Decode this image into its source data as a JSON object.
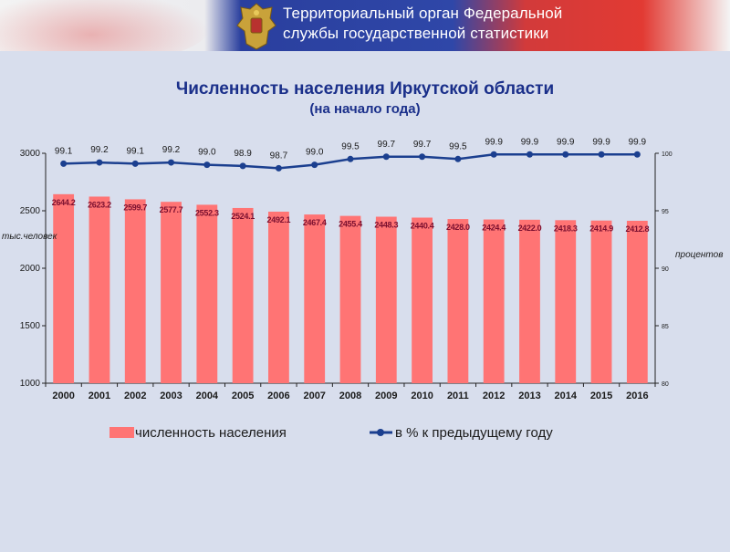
{
  "header": {
    "org_line1": "Территориальный орган Федеральной",
    "org_line2": "службы государственной статистики"
  },
  "colors": {
    "bar": "#ff7474",
    "line": "#1b3f8f",
    "title": "#1a2f8a",
    "bar_label": "#7a0f2f",
    "background": "#d8deed"
  },
  "chart_data": {
    "type": "bar",
    "title": "Численность населения Иркутской области",
    "subtitle": "(на начало года)",
    "ylabel": "тыс.человек",
    "y2label": "процентов",
    "categories": [
      "2000",
      "2001",
      "2002",
      "2003",
      "2004",
      "2005",
      "2006",
      "2007",
      "2008",
      "2009",
      "2010",
      "2011",
      "2012",
      "2013",
      "2014",
      "2015",
      "2016"
    ],
    "ylim": [
      1000,
      3000
    ],
    "yticks": [
      1000,
      1500,
      2000,
      2500,
      3000
    ],
    "y2lim": [
      80,
      100
    ],
    "y2ticks": [
      80,
      85,
      90,
      95,
      100
    ],
    "grid": false,
    "legend": "bottom",
    "series": [
      {
        "name": "численность населения",
        "type": "bar",
        "axis": "left",
        "values": [
          2644.2,
          2623.2,
          2599.7,
          2577.7,
          2552.3,
          2524.1,
          2492.1,
          2467.4,
          2455.4,
          2448.3,
          2440.4,
          2428.0,
          2424.4,
          2422.0,
          2418.3,
          2414.9,
          2412.8
        ],
        "labels": [
          "2644.2",
          "2623.2",
          "2599.7",
          "2577.7",
          "2552.3",
          "2524.1",
          "2492.1",
          "2467.4",
          "2455.4",
          "2448.3",
          "2440.4",
          "2428.0",
          "2424.4",
          "2422.0",
          "2418.3",
          "2414.9",
          "2412.8"
        ]
      },
      {
        "name": "в % к предыдущему году",
        "type": "line",
        "axis": "right",
        "values": [
          99.1,
          99.2,
          99.1,
          99.2,
          99.0,
          98.9,
          98.7,
          99.0,
          99.5,
          99.7,
          99.7,
          99.5,
          99.9,
          99.9,
          99.9,
          99.9,
          99.9
        ],
        "labels": [
          "99.1",
          "99.2",
          "99.1",
          "99.2",
          "99.0",
          "98.9",
          "98.7",
          "99.0",
          "99.5",
          "99.7",
          "99.7",
          "99.5",
          "99.9",
          "99.9",
          "99.9",
          "99.9",
          "99.9"
        ]
      }
    ]
  }
}
